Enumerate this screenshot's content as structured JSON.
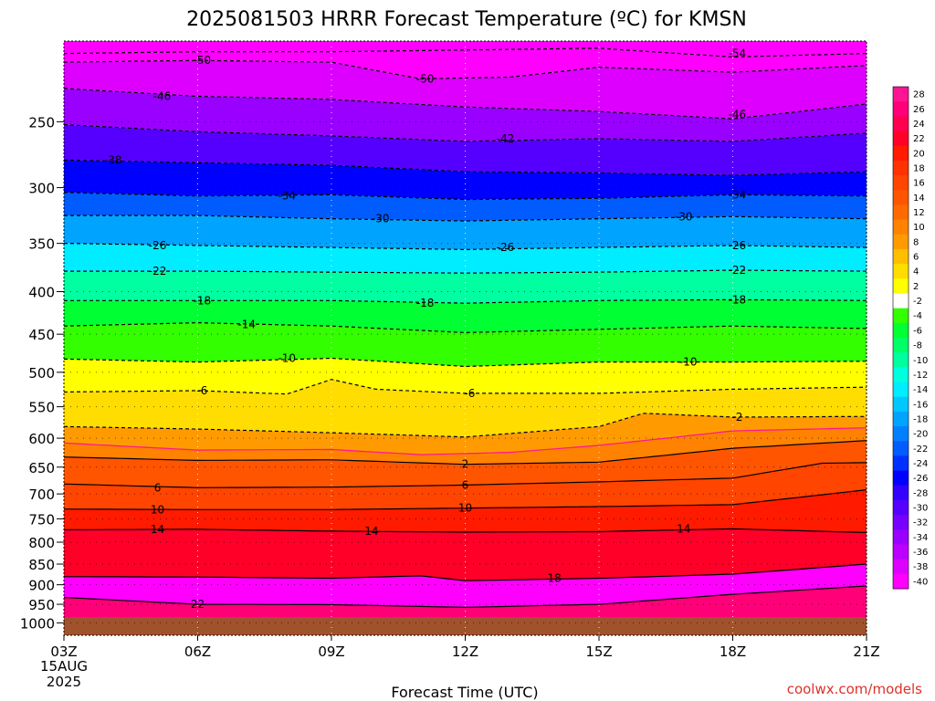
{
  "chart_data": {
    "type": "heatmap",
    "title": "2025081503 HRRR Forecast Temperature (ºC) for KMSN",
    "xlabel": "Forecast Time (UTC)",
    "ylabel": "",
    "credit": "coolwx.com/models",
    "x_ticks": [
      "03Z",
      "06Z",
      "09Z",
      "12Z",
      "15Z",
      "18Z",
      "21Z"
    ],
    "x_date_line1": "15AUG",
    "x_date_line2": "2025",
    "y_scale": "log",
    "y_ticks": [
      250,
      300,
      350,
      400,
      450,
      500,
      550,
      600,
      650,
      700,
      750,
      800,
      850,
      900,
      950,
      1000
    ],
    "ylim": [
      200,
      1035
    ],
    "xlim": [
      3,
      21
    ],
    "colorbar": {
      "ticks": [
        28,
        26,
        24,
        22,
        20,
        18,
        16,
        14,
        12,
        10,
        8,
        6,
        4,
        2,
        -2,
        -4,
        -6,
        -8,
        -10,
        -12,
        -14,
        -16,
        -18,
        -20,
        -22,
        -24,
        -26,
        -28,
        -30,
        -32,
        -34,
        -36,
        -38,
        -40
      ],
      "colors": [
        "#ff1493",
        "#ff0078",
        "#ff0050",
        "#ff0028",
        "#ff1a00",
        "#ff3300",
        "#ff4500",
        "#ff5500",
        "#ff6a00",
        "#ff8200",
        "#ff9b00",
        "#ffbe00",
        "#ffdd00",
        "#ffff00",
        "#ffffff",
        "#33ff00",
        "#00ff33",
        "#00ff66",
        "#00ffa0",
        "#00ffdd",
        "#00ecff",
        "#00c8ff",
        "#00a4ff",
        "#0080ff",
        "#005cff",
        "#0030ff",
        "#0000ff",
        "#3300ff",
        "#5500ff",
        "#7700ff",
        "#9900ff",
        "#bb00ff",
        "#dd00ff",
        "#ff00ff"
      ]
    },
    "series": [
      {
        "label": "-54",
        "values": [
          [
            3,
            207
          ],
          [
            6,
            206
          ],
          [
            9,
            206
          ],
          [
            12,
            205
          ],
          [
            15,
            204
          ],
          [
            18,
            209
          ],
          [
            21,
            207
          ]
        ]
      },
      {
        "label": "-50",
        "values": [
          [
            3,
            212
          ],
          [
            6,
            211
          ],
          [
            9,
            212
          ],
          [
            11,
            222
          ],
          [
            13,
            221
          ],
          [
            15,
            215
          ],
          [
            18,
            218
          ],
          [
            21,
            214
          ]
        ]
      },
      {
        "label": "-46",
        "values": [
          [
            3,
            228
          ],
          [
            6,
            233
          ],
          [
            9,
            235
          ],
          [
            12,
            240
          ],
          [
            15,
            243
          ],
          [
            18,
            248
          ],
          [
            21,
            238
          ]
        ]
      },
      {
        "label": "-42",
        "values": [
          [
            3,
            252
          ],
          [
            6,
            257
          ],
          [
            9,
            260
          ],
          [
            12,
            264
          ],
          [
            15,
            262
          ],
          [
            18,
            264
          ],
          [
            21,
            258
          ]
        ]
      },
      {
        "label": "-38",
        "values": [
          [
            3,
            278
          ],
          [
            6,
            280
          ],
          [
            9,
            282
          ],
          [
            12,
            287
          ],
          [
            15,
            288
          ],
          [
            18,
            290
          ],
          [
            21,
            287
          ]
        ]
      },
      {
        "label": "-34",
        "values": [
          [
            3,
            304
          ],
          [
            6,
            307
          ],
          [
            9,
            306
          ],
          [
            12,
            310
          ],
          [
            15,
            309
          ],
          [
            18,
            306
          ],
          [
            21,
            307
          ]
        ]
      },
      {
        "label": "-30",
        "values": [
          [
            3,
            324
          ],
          [
            6,
            324
          ],
          [
            9,
            327
          ],
          [
            12,
            329
          ],
          [
            15,
            327
          ],
          [
            18,
            325
          ],
          [
            21,
            327
          ]
        ]
      },
      {
        "label": "-26",
        "values": [
          [
            3,
            350
          ],
          [
            6,
            352
          ],
          [
            9,
            354
          ],
          [
            12,
            356
          ],
          [
            15,
            354
          ],
          [
            18,
            352
          ],
          [
            21,
            354
          ]
        ]
      },
      {
        "label": "-22",
        "values": [
          [
            3,
            378
          ],
          [
            6,
            378
          ],
          [
            9,
            379
          ],
          [
            12,
            380
          ],
          [
            15,
            379
          ],
          [
            18,
            377
          ],
          [
            21,
            378
          ]
        ]
      },
      {
        "label": "-18",
        "values": [
          [
            3,
            410
          ],
          [
            6,
            410
          ],
          [
            9,
            410
          ],
          [
            12,
            413
          ],
          [
            15,
            410
          ],
          [
            18,
            409
          ],
          [
            21,
            410
          ]
        ]
      },
      {
        "label": "-14",
        "values": [
          [
            3,
            440
          ],
          [
            6,
            436
          ],
          [
            9,
            440
          ],
          [
            12,
            448
          ],
          [
            15,
            444
          ],
          [
            18,
            440
          ],
          [
            21,
            443
          ]
        ]
      },
      {
        "label": "-10",
        "values": [
          [
            3,
            482
          ],
          [
            6,
            486
          ],
          [
            9,
            481
          ],
          [
            12,
            492
          ],
          [
            15,
            486
          ],
          [
            18,
            486
          ],
          [
            21,
            485
          ]
        ]
      },
      {
        "label": "-6",
        "values": [
          [
            3,
            528
          ],
          [
            6,
            526
          ],
          [
            8,
            531
          ],
          [
            9,
            510
          ],
          [
            10,
            524
          ],
          [
            12,
            530
          ],
          [
            15,
            530
          ],
          [
            18,
            524
          ],
          [
            21,
            521
          ]
        ]
      },
      {
        "label": "-2",
        "values": [
          [
            3,
            581
          ],
          [
            6,
            585
          ],
          [
            9,
            591
          ],
          [
            12,
            598
          ],
          [
            15,
            581
          ],
          [
            16,
            560
          ],
          [
            18,
            566
          ],
          [
            21,
            565
          ]
        ]
      },
      {
        "label": "0",
        "values": [
          [
            3,
            608
          ],
          [
            6,
            620
          ],
          [
            9,
            619
          ],
          [
            11,
            628
          ],
          [
            13,
            624
          ],
          [
            15,
            612
          ],
          [
            18,
            588
          ],
          [
            21,
            583
          ]
        ]
      },
      {
        "label": "2",
        "values": [
          [
            3,
            632
          ],
          [
            6,
            638
          ],
          [
            9,
            637
          ],
          [
            12,
            645
          ],
          [
            15,
            641
          ],
          [
            18,
            617
          ],
          [
            21,
            604
          ]
        ]
      },
      {
        "label": "6",
        "values": [
          [
            3,
            681
          ],
          [
            6,
            688
          ],
          [
            9,
            687
          ],
          [
            12,
            683
          ],
          [
            15,
            677
          ],
          [
            18,
            670
          ],
          [
            20,
            643
          ],
          [
            21,
            642
          ]
        ]
      },
      {
        "label": "10",
        "values": [
          [
            3,
            730
          ],
          [
            6,
            731
          ],
          [
            9,
            731
          ],
          [
            12,
            728
          ],
          [
            15,
            725
          ],
          [
            18,
            721
          ],
          [
            21,
            692
          ]
        ]
      },
      {
        "label": "14",
        "values": [
          [
            3,
            773
          ],
          [
            6,
            772
          ],
          [
            9,
            776
          ],
          [
            12,
            778
          ],
          [
            15,
            777
          ],
          [
            18,
            771
          ],
          [
            21,
            779
          ]
        ]
      },
      {
        "label": "18",
        "values": [
          [
            3,
            880
          ],
          [
            6,
            881
          ],
          [
            9,
            884
          ],
          [
            11,
            878
          ],
          [
            12,
            890
          ],
          [
            15,
            884
          ],
          [
            18,
            874
          ],
          [
            21,
            850
          ]
        ]
      },
      {
        "label": "22",
        "values": [
          [
            3,
            932
          ],
          [
            6,
            950
          ],
          [
            9,
            951
          ],
          [
            12,
            958
          ],
          [
            15,
            950
          ],
          [
            18,
            924
          ],
          [
            21,
            903
          ]
        ]
      }
    ],
    "contour_labels": [
      {
        "text": "-54",
        "x": 18.1,
        "p": 207
      },
      {
        "text": "-50",
        "x": 6.1,
        "p": 211
      },
      {
        "text": "-50",
        "x": 11.1,
        "p": 222
      },
      {
        "text": "-46",
        "x": 5.2,
        "p": 233
      },
      {
        "text": "-46",
        "x": 18.1,
        "p": 245
      },
      {
        "text": "-42",
        "x": 12.9,
        "p": 262
      },
      {
        "text": "-38",
        "x": 4.1,
        "p": 278
      },
      {
        "text": "-34",
        "x": 8.0,
        "p": 307
      },
      {
        "text": "-34",
        "x": 18.1,
        "p": 306
      },
      {
        "text": "-30",
        "x": 10.1,
        "p": 327
      },
      {
        "text": "-30",
        "x": 16.9,
        "p": 325
      },
      {
        "text": "-26",
        "x": 5.1,
        "p": 352
      },
      {
        "text": "-26",
        "x": 12.9,
        "p": 354
      },
      {
        "text": "-26",
        "x": 18.1,
        "p": 352
      },
      {
        "text": "-22",
        "x": 5.1,
        "p": 378
      },
      {
        "text": "-22",
        "x": 18.1,
        "p": 377
      },
      {
        "text": "-18",
        "x": 6.1,
        "p": 410
      },
      {
        "text": "-18",
        "x": 11.1,
        "p": 413
      },
      {
        "text": "-18",
        "x": 18.1,
        "p": 409
      },
      {
        "text": "-14",
        "x": 7.1,
        "p": 438
      },
      {
        "text": "-10",
        "x": 8.0,
        "p": 481
      },
      {
        "text": "-10",
        "x": 17.0,
        "p": 486
      },
      {
        "text": "-6",
        "x": 6.1,
        "p": 526
      },
      {
        "text": "-6",
        "x": 12.1,
        "p": 530
      },
      {
        "text": "-2",
        "x": 18.1,
        "p": 566
      },
      {
        "text": "2",
        "x": 12.0,
        "p": 645
      },
      {
        "text": "6",
        "x": 5.1,
        "p": 688
      },
      {
        "text": "6",
        "x": 12.0,
        "p": 683
      },
      {
        "text": "10",
        "x": 5.1,
        "p": 731
      },
      {
        "text": "10",
        "x": 12.0,
        "p": 728
      },
      {
        "text": "14",
        "x": 5.1,
        "p": 772
      },
      {
        "text": "14",
        "x": 9.9,
        "p": 776
      },
      {
        "text": "14",
        "x": 16.9,
        "p": 771
      },
      {
        "text": "18",
        "x": 14.0,
        "p": 884
      },
      {
        "text": "22",
        "x": 6.0,
        "p": 950
      }
    ],
    "grid": true,
    "legend": "colorbar right"
  }
}
